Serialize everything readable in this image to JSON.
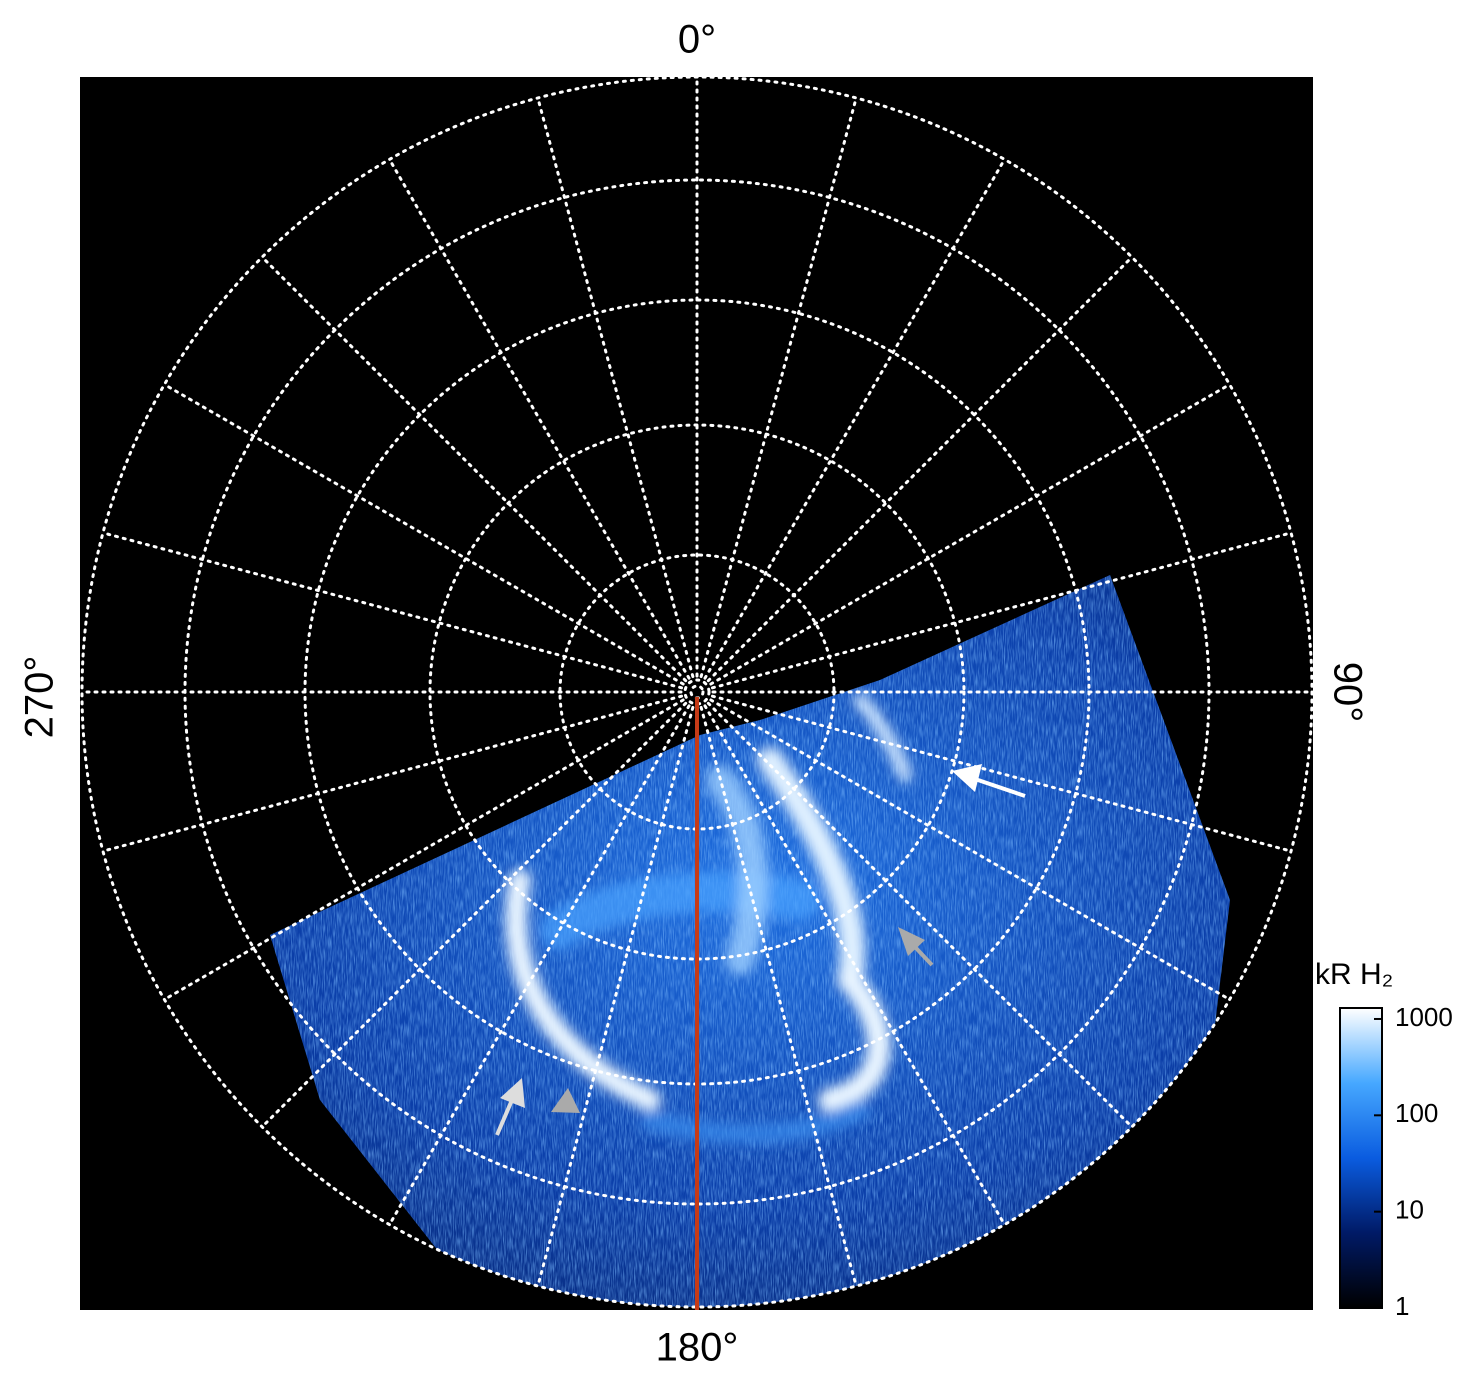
{
  "chart_data": {
    "type": "polar-image",
    "angle_labels": [
      "0°",
      "90°",
      "180°",
      "270°"
    ],
    "colorbar": {
      "title": "kR H₂",
      "log": true,
      "lim": [
        1,
        1300
      ],
      "ticks": [
        1,
        10,
        100,
        1000
      ],
      "colors": [
        "#000000",
        "#001a66",
        "#0a5ce0",
        "#46a8ff",
        "#ffffff"
      ]
    },
    "meridian_color": "#c63b17"
  }
}
